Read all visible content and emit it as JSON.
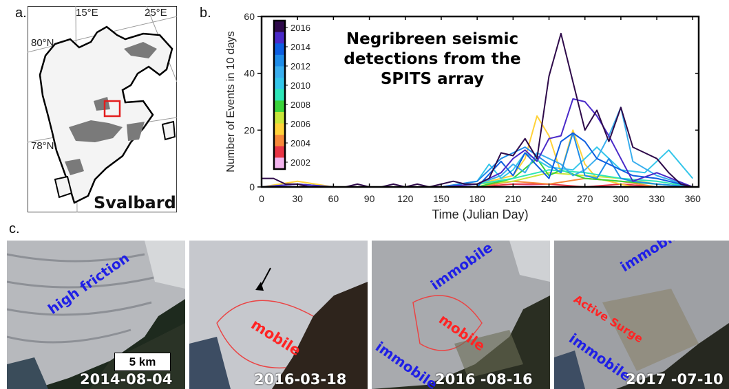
{
  "panel_labels": {
    "a": "a.",
    "b": "b.",
    "c": "c."
  },
  "map": {
    "lon_labels": [
      "15°E",
      "25°E"
    ],
    "lat_labels": [
      "80°N",
      "78°N"
    ],
    "name": "Svalbard",
    "colors": {
      "land": "#f4f4f4",
      "glacier_shade": "#7a7a7a",
      "coast": "#000000",
      "ocean": "#ffffff",
      "graticule": "#9a9a9a",
      "box": "#e31d1d"
    }
  },
  "chart_data": {
    "type": "line",
    "title": "Negribreen seismic detections from the SPITS array",
    "title_lines": [
      "Negribreen seismic",
      "detections from the",
      "SPITS array"
    ],
    "xlabel": "Time (Julian Day)",
    "ylabel": "Number of Events in 10 days",
    "xlim": [
      0,
      365
    ],
    "ylim": [
      0,
      60
    ],
    "xticks": [
      0,
      30,
      60,
      90,
      120,
      150,
      180,
      210,
      240,
      270,
      300,
      330,
      360
    ],
    "yticks": [
      0,
      20,
      40,
      60
    ],
    "colorbar_ticks": [
      "2016",
      "2014",
      "2012",
      "2010",
      "2008",
      "2006",
      "2004",
      "2002"
    ],
    "series": [
      {
        "year": 2002,
        "color": "#f3b4ee",
        "x": [
          0,
          30,
          60,
          90,
          120,
          150,
          180,
          210,
          240,
          270,
          300,
          330,
          360
        ],
        "y": [
          0,
          0,
          0,
          0,
          0,
          0,
          0,
          1,
          0,
          0,
          1,
          0,
          0
        ]
      },
      {
        "year": 2003,
        "color": "#e83545",
        "x": [
          0,
          30,
          60,
          90,
          120,
          150,
          180,
          210,
          240,
          270,
          300,
          330,
          360
        ],
        "y": [
          0,
          0,
          0,
          0,
          0,
          0,
          0,
          1,
          1,
          0,
          1,
          0,
          0
        ]
      },
      {
        "year": 2005,
        "color": "#f7893a",
        "x": [
          0,
          30,
          60,
          90,
          120,
          150,
          180,
          210,
          240,
          270,
          300,
          330,
          360
        ],
        "y": [
          0,
          1,
          0,
          0,
          0,
          0,
          0,
          2,
          1,
          3,
          2,
          0,
          0
        ]
      },
      {
        "year": 2006,
        "color": "#ffd23a",
        "x": [
          0,
          30,
          60,
          90,
          120,
          150,
          180,
          210,
          220,
          230,
          240,
          250,
          260,
          270,
          280,
          290,
          300,
          310,
          330,
          360
        ],
        "y": [
          0,
          2,
          0,
          0,
          0,
          0,
          1,
          4,
          10,
          25,
          18,
          5,
          20,
          8,
          3,
          2,
          1,
          0,
          0,
          0
        ]
      },
      {
        "year": 2008,
        "color": "#c8e63a",
        "x": [
          0,
          30,
          60,
          90,
          120,
          150,
          180,
          210,
          240,
          270,
          300,
          330,
          360
        ],
        "y": [
          0,
          0,
          0,
          0,
          0,
          0,
          1,
          2,
          5,
          4,
          3,
          1,
          0
        ]
      },
      {
        "year": 2009,
        "color": "#3ad33a",
        "x": [
          0,
          30,
          60,
          90,
          120,
          150,
          180,
          210,
          230,
          240,
          250,
          270,
          300,
          330,
          360
        ],
        "y": [
          0,
          0,
          0,
          0,
          0,
          0,
          0,
          3,
          10,
          4,
          6,
          3,
          2,
          1,
          0
        ]
      },
      {
        "year": 2010,
        "color": "#2ee6b8",
        "x": [
          0,
          30,
          60,
          90,
          120,
          150,
          180,
          210,
          240,
          270,
          300,
          330,
          360
        ],
        "y": [
          0,
          1,
          0,
          0,
          0,
          0,
          1,
          3,
          6,
          5,
          3,
          2,
          0
        ]
      },
      {
        "year": 2011,
        "color": "#34c6ea",
        "x": [
          0,
          30,
          60,
          90,
          120,
          150,
          180,
          190,
          200,
          210,
          220,
          240,
          260,
          270,
          280,
          300,
          320,
          340,
          360
        ],
        "y": [
          0,
          0,
          0,
          0,
          0,
          0,
          2,
          8,
          3,
          6,
          12,
          7,
          6,
          10,
          14,
          6,
          5,
          13,
          3
        ]
      },
      {
        "year": 2012,
        "color": "#3aaeee",
        "x": [
          0,
          30,
          60,
          90,
          120,
          150,
          180,
          200,
          210,
          220,
          230,
          240,
          250,
          260,
          270,
          280,
          290,
          300,
          310,
          330,
          360
        ],
        "y": [
          0,
          0,
          0,
          0,
          0,
          0,
          1,
          4,
          8,
          5,
          12,
          10,
          8,
          4,
          6,
          10,
          18,
          28,
          9,
          4,
          0
        ]
      },
      {
        "year": 2013,
        "color": "#1f8ce8",
        "x": [
          0,
          30,
          60,
          90,
          120,
          150,
          180,
          200,
          210,
          220,
          240,
          250,
          260,
          270,
          280,
          290,
          300,
          310,
          330,
          360
        ],
        "y": [
          0,
          1,
          0,
          0,
          0,
          0,
          2,
          10,
          12,
          14,
          8,
          5,
          19,
          4,
          3,
          10,
          3,
          2,
          1,
          0
        ]
      },
      {
        "year": 2014,
        "color": "#0e5ee0",
        "x": [
          0,
          30,
          60,
          90,
          120,
          150,
          180,
          200,
          210,
          220,
          240,
          250,
          260,
          270,
          280,
          290,
          310,
          330,
          360
        ],
        "y": [
          0,
          0,
          0,
          0,
          0,
          0,
          0,
          9,
          4,
          12,
          3,
          16,
          19,
          16,
          10,
          8,
          4,
          3,
          0
        ]
      },
      {
        "year": 2015,
        "color": "#4a2ac8",
        "x": [
          0,
          30,
          60,
          90,
          120,
          150,
          180,
          200,
          210,
          220,
          230,
          240,
          250,
          260,
          270,
          280,
          290,
          300,
          310,
          330,
          360
        ],
        "y": [
          0,
          1,
          0,
          0,
          0,
          0,
          1,
          5,
          10,
          13,
          9,
          17,
          18,
          31,
          30,
          25,
          18,
          10,
          2,
          5,
          0
        ]
      },
      {
        "year": 2016,
        "color": "#2e0a4a",
        "x": [
          0,
          10,
          20,
          30,
          40,
          50,
          60,
          70,
          80,
          90,
          100,
          110,
          120,
          130,
          140,
          150,
          160,
          170,
          180,
          190,
          200,
          210,
          220,
          230,
          240,
          250,
          260,
          270,
          280,
          290,
          300,
          310,
          320,
          330,
          340,
          350,
          360
        ],
        "y": [
          3,
          3,
          1,
          1,
          0,
          0,
          0,
          0,
          1,
          0,
          0,
          1,
          0,
          1,
          0,
          1,
          2,
          1,
          1,
          3,
          12,
          11,
          17,
          10,
          39,
          54,
          37,
          20,
          27,
          16,
          28,
          14,
          12,
          10,
          5,
          1,
          0
        ]
      }
    ]
  },
  "satellite_panels": [
    {
      "date": "2014-08-04",
      "texts": [
        {
          "text": "high friction",
          "color": "#1f1fe6"
        }
      ],
      "scale": "5 km"
    },
    {
      "date": "2016-03-18",
      "texts": [
        {
          "text": "mobile",
          "color": "#ff2424"
        }
      ]
    },
    {
      "date": "2016 -08-16",
      "texts": [
        {
          "text": "immobile",
          "color": "#1f1fe6"
        },
        {
          "text": "mobile",
          "color": "#ff2424"
        },
        {
          "text": "immobile",
          "color": "#1f1fe6"
        }
      ]
    },
    {
      "date": "2017 -07-10",
      "texts": [
        {
          "text": "immobile",
          "color": "#1f1fe6"
        },
        {
          "text": "Active Surge",
          "color": "#ff2424"
        },
        {
          "text": "immobile",
          "color": "#1f1fe6"
        }
      ]
    }
  ]
}
